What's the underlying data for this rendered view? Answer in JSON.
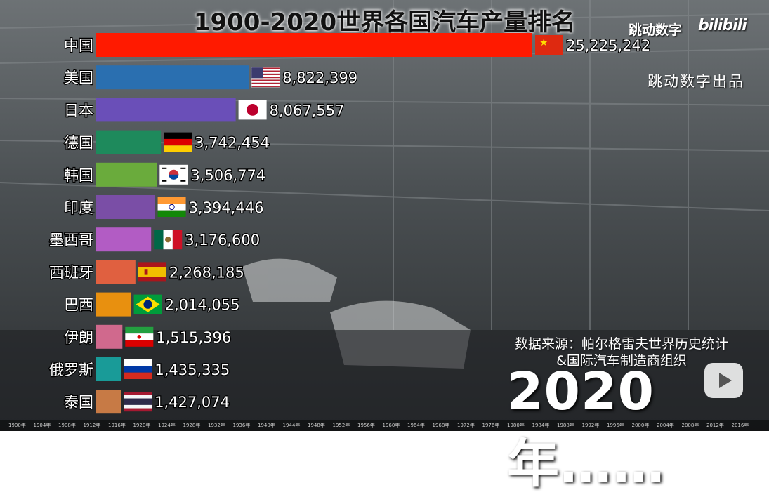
{
  "title": "1900-2020世界各国汽车产量排名",
  "credit": "跳动数字出品",
  "watermark": "跳动数字",
  "bilibili": "bilibili",
  "source_line1": "数据来源：帕尔格雷夫世界历史统计",
  "source_line2": "&国际汽车制造商组织",
  "year_label": "2020年……",
  "timeline_ticks": [
    "1900年",
    "1904年",
    "1908年",
    "1912年",
    "1916年",
    "1920年",
    "1924年",
    "1928年",
    "1932年",
    "1936年",
    "1940年",
    "1944年",
    "1948年",
    "1952年",
    "1956年",
    "1960年",
    "1964年",
    "1968年",
    "1972年",
    "1976年",
    "1980年",
    "1984年",
    "1988年",
    "1992年",
    "1996年",
    "2000年",
    "2004年",
    "2008年",
    "2012年",
    "2016年"
  ],
  "chart_data": {
    "type": "bar",
    "orientation": "horizontal",
    "title": "1900-2020世界各国汽车产量排名",
    "year": "2020年",
    "categories": [
      "中国",
      "美国",
      "日本",
      "德国",
      "韩国",
      "印度",
      "墨西哥",
      "西班牙",
      "巴西",
      "伊朗",
      "俄罗斯",
      "泰国"
    ],
    "values": [
      25225242,
      8822399,
      8067557,
      3742454,
      3506774,
      3394446,
      3176600,
      2268185,
      2014055,
      1515396,
      1435335,
      1427074
    ],
    "value_labels": [
      "25,225,242",
      "8,822,399",
      "8,067,557",
      "3,742,454",
      "3,506,774",
      "3,394,446",
      "3,176,600",
      "2,268,185",
      "2,014,055",
      "1,515,396",
      "1,435,335",
      "1,427,074"
    ],
    "colors": [
      "#ff1a00",
      "#2a6fb0",
      "#6a4fb8",
      "#1e8a5c",
      "#6aab3c",
      "#7a4ea6",
      "#b25cc4",
      "#e06040",
      "#e8900f",
      "#d0698d",
      "#199b98",
      "#c77a45"
    ],
    "flags": [
      "china-flag",
      "usa-flag",
      "japan-flag",
      "germany-flag",
      "korea-flag",
      "india-flag",
      "mexico-flag",
      "spain-flag",
      "brazil-flag",
      "iran-flag",
      "russia-flag",
      "thailand-flag"
    ]
  }
}
